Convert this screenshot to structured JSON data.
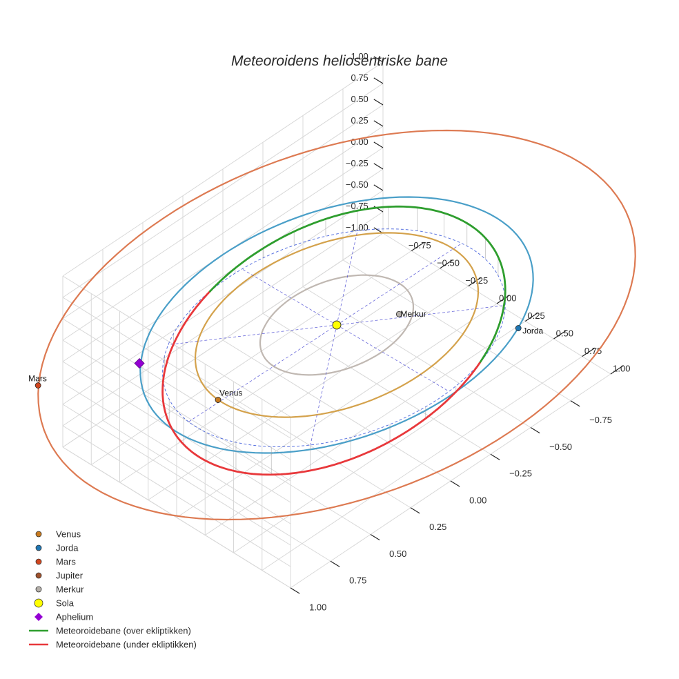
{
  "chart_data": {
    "type": "scatter3d",
    "title": "Meteoroidens heliosentriske bane",
    "axes": {
      "x": {
        "range": [
          -1.0,
          1.0
        ],
        "ticks": [
          -0.75,
          -0.5,
          -0.25,
          0.0,
          0.25,
          0.5,
          0.75,
          1.0
        ],
        "tick_labels": [
          "−0.75",
          "−0.50",
          "−0.25",
          "0.00",
          "0.25",
          "0.50",
          "0.75",
          "1.00"
        ]
      },
      "y": {
        "range": [
          -1.0,
          1.0
        ],
        "ticks": [
          -0.75,
          -0.5,
          -0.25,
          0.0,
          0.25,
          0.5,
          0.75,
          1.0
        ],
        "tick_labels": [
          "−0.75",
          "−0.50",
          "−0.25",
          "0.00",
          "0.25",
          "0.50",
          "0.75",
          "1.00"
        ]
      },
      "z": {
        "range": [
          -1.0,
          1.0
        ],
        "ticks": [
          -1.0,
          -0.75,
          -0.5,
          -0.25,
          0.0,
          0.25,
          0.5,
          0.75,
          1.0
        ],
        "tick_labels": [
          "−1.00",
          "−0.75",
          "−0.50",
          "−0.25",
          "0.00",
          "0.25",
          "0.50",
          "0.75",
          "1.00"
        ]
      },
      "grid": true
    },
    "orbits": [
      {
        "name": "Merkur",
        "radius": 0.39,
        "color": "#c0b8b2"
      },
      {
        "name": "Venus",
        "radius": 0.72,
        "color": "#d4a24c"
      },
      {
        "name": "Jorda",
        "radius": 1.0,
        "color": "#4a9fc8"
      },
      {
        "name": "Mars",
        "radius": 1.52,
        "color": "#dd7a52"
      }
    ],
    "planets": [
      {
        "name": "Venus",
        "x": -0.03,
        "y": 0.72,
        "z": 0,
        "color": "#c87a1e",
        "label": "Venus"
      },
      {
        "name": "Jorda",
        "x": 0.85,
        "y": -0.53,
        "z": 0,
        "color": "#1f77b4",
        "label": "Jorda"
      },
      {
        "name": "Mars",
        "x": -0.95,
        "y": 1.19,
        "z": 0,
        "color": "#d2461e",
        "label": "Mars"
      },
      {
        "name": "Merkur",
        "x": 0.21,
        "y": -0.24,
        "z": 0,
        "color": "#b5b0aa",
        "label": "Merkur"
      }
    ],
    "sun": {
      "name": "Sola",
      "x": 0,
      "y": 0,
      "z": 0,
      "color": "#ffff00"
    },
    "aphelium": {
      "name": "Aphelium",
      "x": -0.58,
      "y": 0.82,
      "z": 0.1,
      "color": "#9400d3"
    },
    "meteoroid": {
      "a": 0.9,
      "e": 0.12,
      "inclination_deg": 20,
      "ascending_node_deg": 165,
      "arg_perihelion_deg": 60,
      "segments": [
        {
          "name": "Meteoroidebane (over ekliptikken)",
          "color": "#2e9e2e",
          "side": "above"
        },
        {
          "name": "Meteoroidebane (under ekliptikken)",
          "color": "#e8383b",
          "side": "below"
        }
      ]
    },
    "legend": {
      "position": "bottom-left",
      "entries": [
        {
          "label": "Venus",
          "marker": "dot",
          "color": "#c87a1e"
        },
        {
          "label": "Jorda",
          "marker": "dot",
          "color": "#1f77b4"
        },
        {
          "label": "Mars",
          "marker": "dot",
          "color": "#d2461e"
        },
        {
          "label": "Jupiter",
          "marker": "dot",
          "color": "#a0522d"
        },
        {
          "label": "Merkur",
          "marker": "dot",
          "color": "#b5b0aa"
        },
        {
          "label": "Sola",
          "marker": "bigdot",
          "color": "#ffff00"
        },
        {
          "label": "Aphelium",
          "marker": "diamond",
          "color": "#9400d3"
        },
        {
          "label": "Meteoroidebane (over ekliptikken)",
          "marker": "line",
          "color": "#2e9e2e"
        },
        {
          "label": "Meteoroidebane (under ekliptikken)",
          "marker": "line",
          "color": "#e8383b"
        }
      ]
    }
  }
}
